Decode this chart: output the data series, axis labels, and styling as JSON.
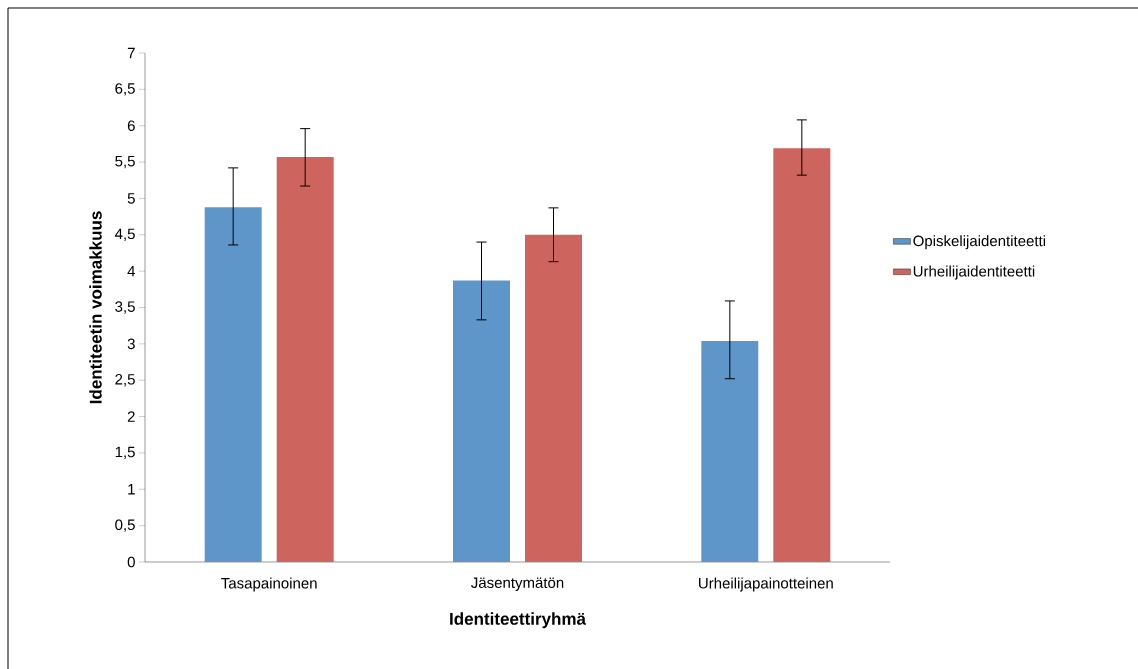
{
  "chart_data": {
    "type": "bar",
    "xlabel": "Identiteettiryhmä",
    "ylabel": "Identiteetin voimakkuus",
    "categories": [
      "Tasapainoinen",
      "Jäsentymätön",
      "Urheilijapainotteinen"
    ],
    "series": [
      {
        "name": "Opiskelijaidentiteetti",
        "color": "#5f96c9",
        "values": [
          4.88,
          3.87,
          3.04
        ],
        "errors": [
          [
            4.36,
            5.42
          ],
          [
            3.33,
            4.4
          ],
          [
            2.52,
            3.59
          ]
        ]
      },
      {
        "name": "Urheilijaidentiteetti",
        "color": "#cd645e",
        "values": [
          5.57,
          4.5,
          5.69
        ],
        "errors": [
          [
            5.17,
            5.96
          ],
          [
            4.13,
            4.87
          ],
          [
            5.32,
            6.08
          ]
        ]
      }
    ],
    "ylim": [
      0,
      7
    ],
    "yticks": [
      0,
      {
        "value": 0.5,
        "label": "0,5"
      },
      1,
      {
        "value": 1.5,
        "label": "1,5"
      },
      2,
      {
        "value": 2.5,
        "label": "2,5"
      },
      3,
      {
        "value": 3.5,
        "label": "3,5"
      },
      4,
      {
        "value": 4.5,
        "label": "4,5"
      },
      5,
      {
        "value": 5.5,
        "label": "5,5"
      },
      6,
      {
        "value": 6.5,
        "label": "6,5"
      },
      7
    ],
    "grid": false,
    "legend": "right"
  }
}
